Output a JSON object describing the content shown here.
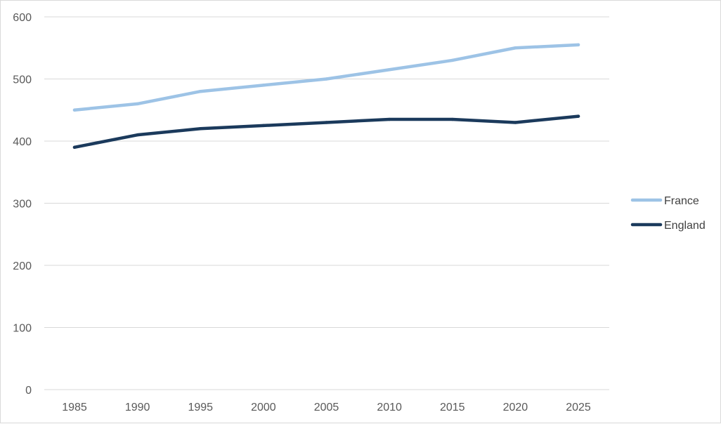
{
  "chart_data": {
    "type": "line",
    "x": [
      1985,
      1990,
      1995,
      2000,
      2005,
      2010,
      2015,
      2020,
      2025
    ],
    "categories": [
      "1985",
      "1990",
      "1995",
      "2000",
      "2005",
      "2010",
      "2015",
      "2020",
      "2025"
    ],
    "ylim": [
      0,
      600
    ],
    "yticks": [
      0,
      100,
      200,
      300,
      400,
      500,
      600
    ],
    "grid": true,
    "legend_position": "right",
    "title": "",
    "xlabel": "",
    "ylabel": "",
    "series": [
      {
        "name": "France",
        "color": "#9dc3e6",
        "values": [
          450,
          460,
          480,
          490,
          500,
          515,
          530,
          550,
          555
        ]
      },
      {
        "name": "England",
        "color": "#1b3a5c",
        "values": [
          390,
          410,
          420,
          425,
          430,
          435,
          435,
          430,
          440
        ]
      }
    ]
  }
}
